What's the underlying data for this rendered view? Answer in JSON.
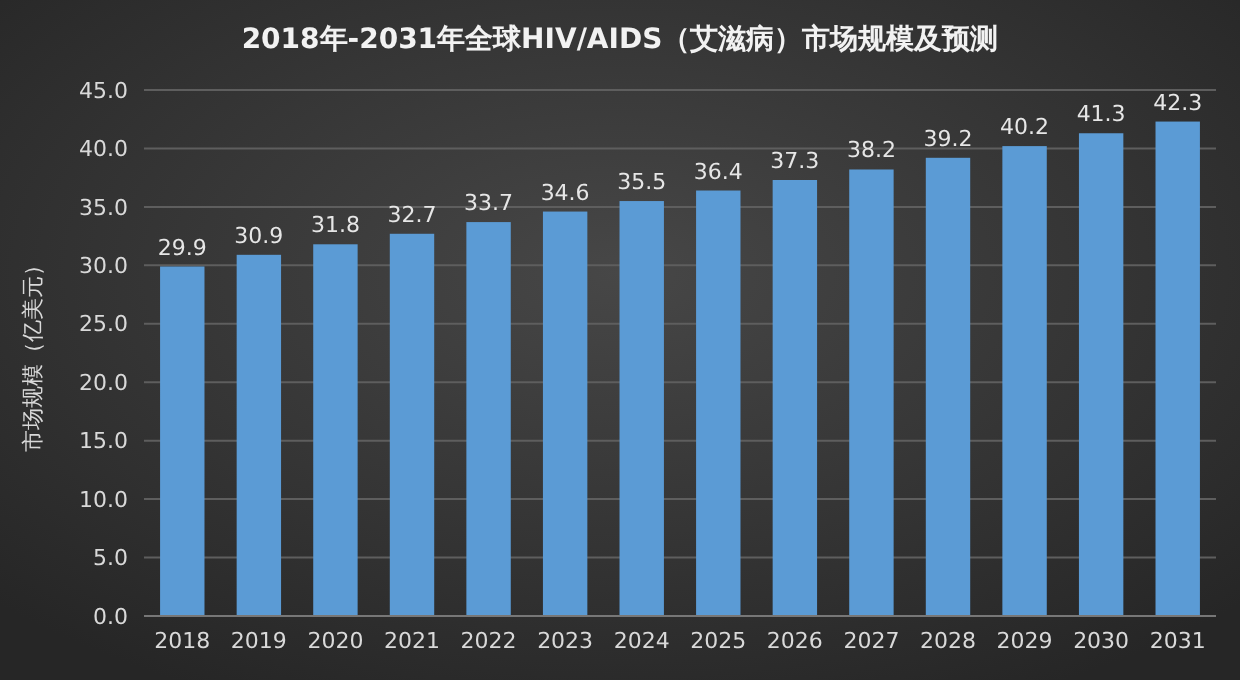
{
  "chart_data": {
    "type": "bar",
    "title": "2018年-2031年全球HIV/AIDS（艾滋病）市场规模及预测",
    "ylabel": "市场规模（亿美元）",
    "categories": [
      "2018",
      "2019",
      "2020",
      "2021",
      "2022",
      "2023",
      "2024",
      "2025",
      "2026",
      "2027",
      "2028",
      "2029",
      "2030",
      "2031"
    ],
    "values": [
      29.9,
      30.9,
      31.8,
      32.7,
      33.7,
      34.6,
      35.5,
      36.4,
      37.3,
      38.2,
      39.2,
      40.2,
      41.3,
      42.3
    ],
    "color": "#5b9bd5",
    "ylim": [
      0,
      45
    ],
    "yticks": [
      {
        "value": 0,
        "label": "0.0"
      },
      {
        "value": 5,
        "label": "5.0"
      },
      {
        "value": 10,
        "label": "10.0"
      },
      {
        "value": 15,
        "label": "15.0"
      },
      {
        "value": 20,
        "label": "20.0"
      },
      {
        "value": 25,
        "label": "25.0"
      },
      {
        "value": 30,
        "label": "30.0"
      },
      {
        "value": 35,
        "label": "35.0"
      },
      {
        "value": 40,
        "label": "40.0"
      },
      {
        "value": 45,
        "label": "45.0"
      }
    ],
    "grid": true,
    "data_labels": true
  }
}
